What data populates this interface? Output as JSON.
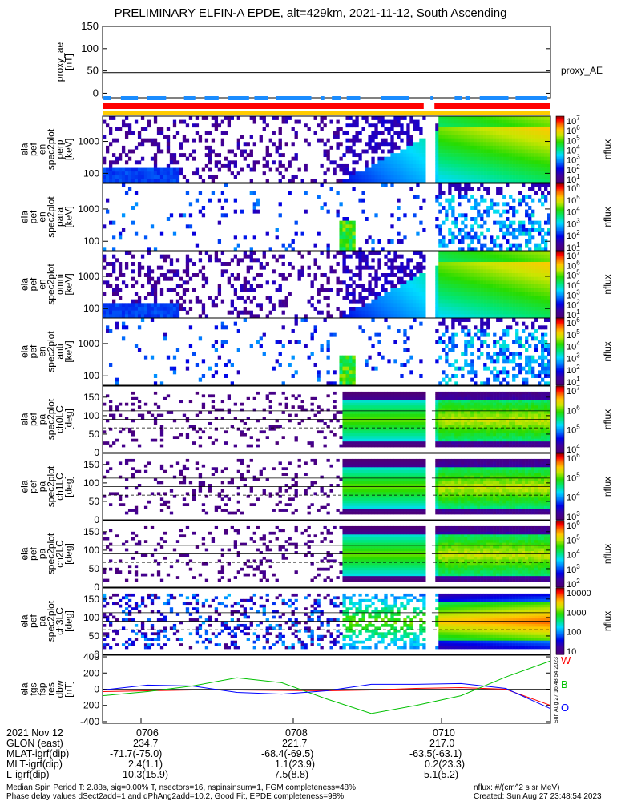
{
  "title": "PRELIMINARY ELFIN-A EPDE, alt=429km, 2021-11-12, South Ascending",
  "chart_data": [
    {
      "type": "line",
      "panel": "proxy_ae",
      "ylabel": [
        "proxy_ae",
        "[nT]"
      ],
      "ylim": [
        -10,
        150
      ],
      "yticks": [
        "150",
        "100",
        "50",
        "0"
      ],
      "legend": "proxy_AE",
      "series": [
        {
          "name": "proxy_AE",
          "x": [
            0,
            1
          ],
          "values": [
            46,
            47
          ]
        }
      ],
      "colors": {
        "line": "#000000"
      }
    },
    {
      "type": "bar",
      "panel": "status-bars",
      "bars": [
        {
          "color": "#1a8cff",
          "segments": [
            [
              0.002,
              0.018
            ],
            [
              0.041,
              0.079
            ],
            [
              0.099,
              0.142
            ],
            [
              0.182,
              0.207
            ],
            [
              0.228,
              0.259
            ],
            [
              0.281,
              0.327
            ],
            [
              0.339,
              0.369
            ],
            [
              0.387,
              0.466
            ],
            [
              0.488,
              0.495
            ],
            [
              0.512,
              0.532
            ],
            [
              0.545,
              0.575
            ],
            [
              0.621,
              0.684
            ],
            [
              0.732,
              0.738
            ],
            [
              0.786,
              0.803
            ],
            [
              0.81,
              0.821
            ],
            [
              0.842,
              0.906
            ],
            [
              0.922,
              0.993
            ]
          ]
        },
        {
          "color": "#ff0000",
          "segments": [
            [
              0.0,
              0.717
            ],
            [
              0.741,
              1.0
            ]
          ]
        },
        {
          "color": "#ffcc00",
          "segments": [
            [
              0.0,
              1.0
            ]
          ]
        }
      ]
    },
    {
      "type": "heatmap",
      "panel": "pef-en-perp",
      "ylabel": [
        "ela",
        "pef",
        "en",
        "spec2plot",
        "perp",
        "[keV]"
      ],
      "yticks": [
        "1000",
        "100"
      ],
      "colorbar": "log",
      "cbar_label": "nflux",
      "cbar_ticks": [
        "10^7",
        "10^6",
        "10^5",
        "10^4",
        "10^3",
        "10^2",
        "10^1"
      ],
      "pattern": "perp"
    },
    {
      "type": "heatmap",
      "panel": "pef-en-para",
      "ylabel": [
        "ela",
        "pef",
        "en",
        "spec2plot",
        "para",
        "[keV]"
      ],
      "yticks": [
        "1000",
        "100"
      ],
      "colorbar": "log",
      "cbar_label": "nflux",
      "cbar_ticks": [
        "10^6",
        "10^5",
        "10^4",
        "10^3",
        "10^2",
        "10^1"
      ],
      "pattern": "para"
    },
    {
      "type": "heatmap",
      "panel": "pef-en-omni",
      "ylabel": [
        "ela",
        "pef",
        "en",
        "spec2plot",
        "omni",
        "[keV]"
      ],
      "yticks": [
        "1000",
        "100"
      ],
      "colorbar": "log",
      "cbar_label": "nflux",
      "cbar_ticks": [
        "10^7",
        "10^6",
        "10^5",
        "10^4",
        "10^3",
        "10^2",
        "10^1"
      ],
      "pattern": "perp"
    },
    {
      "type": "heatmap",
      "panel": "pef-en-anti",
      "ylabel": [
        "ela",
        "pef",
        "en",
        "spec2plot",
        "anti",
        "[keV]"
      ],
      "yticks": [
        "1000",
        "100"
      ],
      "colorbar": "log",
      "cbar_label": "nflux",
      "cbar_ticks": [
        "10^6",
        "10^5",
        "10^4",
        "10^3",
        "10^2",
        "10^1"
      ],
      "pattern": "para"
    },
    {
      "type": "heatmap",
      "panel": "pa-ch0LC",
      "ylabel": [
        "ela",
        "pef",
        "pa",
        "spec2plot",
        "ch0LC",
        "[deg]"
      ],
      "ylim": [
        0,
        180
      ],
      "yticks": [
        "150",
        "100",
        "50",
        "0"
      ],
      "colorbar": "log",
      "cbar_label": "nflux",
      "cbar_ticks": [
        "10^7",
        "10^6",
        "10^5",
        "10^4"
      ],
      "pattern": "pa"
    },
    {
      "type": "heatmap",
      "panel": "pa-ch1LC",
      "ylabel": [
        "ela",
        "pef",
        "pa",
        "spec2plot",
        "ch1LC",
        "[deg]"
      ],
      "ylim": [
        0,
        180
      ],
      "yticks": [
        "150",
        "100",
        "50",
        "0"
      ],
      "colorbar": "log",
      "cbar_label": "nflux",
      "cbar_ticks": [
        "10^6",
        "10^5",
        "10^4",
        "10^3"
      ],
      "pattern": "pa"
    },
    {
      "type": "heatmap",
      "panel": "pa-ch2LC",
      "ylabel": [
        "ela",
        "pef",
        "pa",
        "spec2plot",
        "ch2LC",
        "[deg]"
      ],
      "ylim": [
        0,
        180
      ],
      "yticks": [
        "150",
        "100",
        "50",
        "0"
      ],
      "colorbar": "log",
      "cbar_label": "nflux",
      "cbar_ticks": [
        "10^6",
        "10^5",
        "10^4",
        "10^3",
        "10^2"
      ],
      "pattern": "pa"
    },
    {
      "type": "heatmap",
      "panel": "pa-ch3LC",
      "ylabel": [
        "ela",
        "pef",
        "pa",
        "spec2plot",
        "ch3LC",
        "[deg]"
      ],
      "ylim": [
        0,
        180
      ],
      "yticks": [
        "150",
        "100",
        "50",
        "0"
      ],
      "colorbar": "log",
      "cbar_label": "nflux",
      "cbar_ticks": [
        "10000",
        "1000",
        "100",
        "10"
      ],
      "pattern": "pa3"
    },
    {
      "type": "line",
      "panel": "fgs-res",
      "ylabel": [
        "ela",
        "fgs",
        "fsp",
        "res",
        "dbw",
        "[nT]"
      ],
      "ylim": [
        -420,
        420
      ],
      "yticks": [
        "400",
        "200",
        "0",
        "-200",
        "-400"
      ],
      "series": [
        {
          "name": "W",
          "color": "#ff0000",
          "x": [
            0.0,
            0.1,
            0.2,
            0.3,
            0.4,
            0.5,
            0.6,
            0.7,
            0.8,
            0.9,
            1.0
          ],
          "values": [
            -30,
            -20,
            -10,
            -10,
            -15,
            -20,
            -10,
            10,
            20,
            0,
            -200
          ]
        },
        {
          "name": "B",
          "color": "#00c000",
          "x": [
            0.0,
            0.1,
            0.2,
            0.3,
            0.4,
            0.5,
            0.6,
            0.7,
            0.8,
            0.9,
            1.0
          ],
          "values": [
            -80,
            -30,
            40,
            140,
            80,
            -120,
            -300,
            -200,
            -80,
            150,
            350
          ]
        },
        {
          "name": "O",
          "color": "#0000ff",
          "x": [
            0.0,
            0.1,
            0.2,
            0.3,
            0.4,
            0.5,
            0.6,
            0.7,
            0.8,
            0.9,
            1.0
          ],
          "values": [
            -10,
            50,
            40,
            -40,
            -60,
            -20,
            60,
            60,
            70,
            10,
            -240
          ]
        }
      ],
      "side_stamp": "Sun Aug 27 16:48:54 2023"
    }
  ],
  "xaxis": {
    "header": "2021 Nov 12",
    "times": [
      "0706",
      "0708",
      "0710"
    ],
    "rows": [
      {
        "label": "GLON (east)",
        "values": [
          "234.7",
          "221.7",
          "217.0"
        ]
      },
      {
        "label": "MLAT-igrf(dip)",
        "values": [
          "-71.7(-75.0)",
          "-68.4(-69.5)",
          "-63.5(-63.1)"
        ]
      },
      {
        "label": "MLT-igrf(dip)",
        "values": [
          "2.4(1.1)",
          "1.1(23.9)",
          "0.2(23.3)"
        ]
      },
      {
        "label": "L-igrf(dip)",
        "values": [
          "10.3(15.9)",
          "7.5(8.8)",
          "5.1(5.2)"
        ]
      }
    ]
  },
  "footer": {
    "line1": "Median Spin Period T: 2.88s, sig=0.00% T, nsectors=16, nspinsinsum=1, FGM completeness=48%",
    "line2": "Phase delay values dSect2add=1 and dPhAng2add=10.2, Good Fit, EPDE completeness=98%",
    "units": "nflux: #/(cm^2 s sr MeV)",
    "created": "Created: Sun Aug 27 23:48:54 2023"
  }
}
